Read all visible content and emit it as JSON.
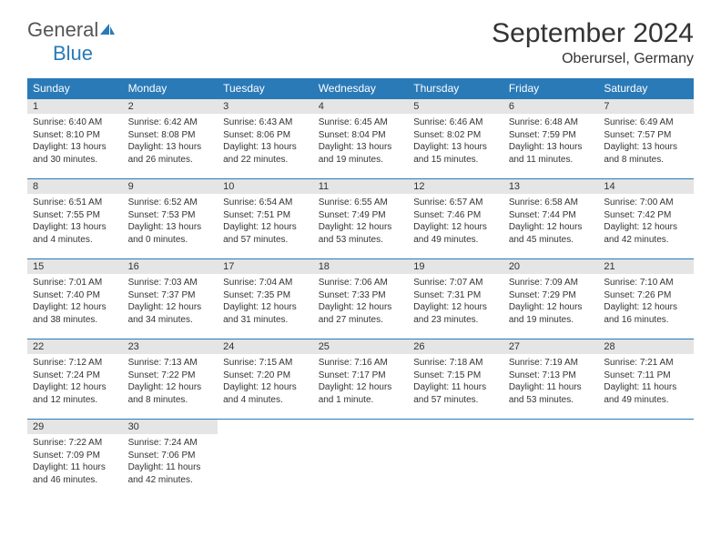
{
  "logo": {
    "text_general": "General",
    "text_blue": "Blue",
    "accent_color": "#2a7ab8",
    "gray_color": "#555555"
  },
  "title": "September 2024",
  "location": "Oberursel, Germany",
  "header_bg": "#2a7ab8",
  "header_fg": "#ffffff",
  "daynum_bg": "#e5e5e5",
  "divider_color": "#2a7ab8",
  "day_names": [
    "Sunday",
    "Monday",
    "Tuesday",
    "Wednesday",
    "Thursday",
    "Friday",
    "Saturday"
  ],
  "weeks": [
    [
      {
        "n": "1",
        "sr": "Sunrise: 6:40 AM",
        "ss": "Sunset: 8:10 PM",
        "dl": "Daylight: 13 hours and 30 minutes."
      },
      {
        "n": "2",
        "sr": "Sunrise: 6:42 AM",
        "ss": "Sunset: 8:08 PM",
        "dl": "Daylight: 13 hours and 26 minutes."
      },
      {
        "n": "3",
        "sr": "Sunrise: 6:43 AM",
        "ss": "Sunset: 8:06 PM",
        "dl": "Daylight: 13 hours and 22 minutes."
      },
      {
        "n": "4",
        "sr": "Sunrise: 6:45 AM",
        "ss": "Sunset: 8:04 PM",
        "dl": "Daylight: 13 hours and 19 minutes."
      },
      {
        "n": "5",
        "sr": "Sunrise: 6:46 AM",
        "ss": "Sunset: 8:02 PM",
        "dl": "Daylight: 13 hours and 15 minutes."
      },
      {
        "n": "6",
        "sr": "Sunrise: 6:48 AM",
        "ss": "Sunset: 7:59 PM",
        "dl": "Daylight: 13 hours and 11 minutes."
      },
      {
        "n": "7",
        "sr": "Sunrise: 6:49 AM",
        "ss": "Sunset: 7:57 PM",
        "dl": "Daylight: 13 hours and 8 minutes."
      }
    ],
    [
      {
        "n": "8",
        "sr": "Sunrise: 6:51 AM",
        "ss": "Sunset: 7:55 PM",
        "dl": "Daylight: 13 hours and 4 minutes."
      },
      {
        "n": "9",
        "sr": "Sunrise: 6:52 AM",
        "ss": "Sunset: 7:53 PM",
        "dl": "Daylight: 13 hours and 0 minutes."
      },
      {
        "n": "10",
        "sr": "Sunrise: 6:54 AM",
        "ss": "Sunset: 7:51 PM",
        "dl": "Daylight: 12 hours and 57 minutes."
      },
      {
        "n": "11",
        "sr": "Sunrise: 6:55 AM",
        "ss": "Sunset: 7:49 PM",
        "dl": "Daylight: 12 hours and 53 minutes."
      },
      {
        "n": "12",
        "sr": "Sunrise: 6:57 AM",
        "ss": "Sunset: 7:46 PM",
        "dl": "Daylight: 12 hours and 49 minutes."
      },
      {
        "n": "13",
        "sr": "Sunrise: 6:58 AM",
        "ss": "Sunset: 7:44 PM",
        "dl": "Daylight: 12 hours and 45 minutes."
      },
      {
        "n": "14",
        "sr": "Sunrise: 7:00 AM",
        "ss": "Sunset: 7:42 PM",
        "dl": "Daylight: 12 hours and 42 minutes."
      }
    ],
    [
      {
        "n": "15",
        "sr": "Sunrise: 7:01 AM",
        "ss": "Sunset: 7:40 PM",
        "dl": "Daylight: 12 hours and 38 minutes."
      },
      {
        "n": "16",
        "sr": "Sunrise: 7:03 AM",
        "ss": "Sunset: 7:37 PM",
        "dl": "Daylight: 12 hours and 34 minutes."
      },
      {
        "n": "17",
        "sr": "Sunrise: 7:04 AM",
        "ss": "Sunset: 7:35 PM",
        "dl": "Daylight: 12 hours and 31 minutes."
      },
      {
        "n": "18",
        "sr": "Sunrise: 7:06 AM",
        "ss": "Sunset: 7:33 PM",
        "dl": "Daylight: 12 hours and 27 minutes."
      },
      {
        "n": "19",
        "sr": "Sunrise: 7:07 AM",
        "ss": "Sunset: 7:31 PM",
        "dl": "Daylight: 12 hours and 23 minutes."
      },
      {
        "n": "20",
        "sr": "Sunrise: 7:09 AM",
        "ss": "Sunset: 7:29 PM",
        "dl": "Daylight: 12 hours and 19 minutes."
      },
      {
        "n": "21",
        "sr": "Sunrise: 7:10 AM",
        "ss": "Sunset: 7:26 PM",
        "dl": "Daylight: 12 hours and 16 minutes."
      }
    ],
    [
      {
        "n": "22",
        "sr": "Sunrise: 7:12 AM",
        "ss": "Sunset: 7:24 PM",
        "dl": "Daylight: 12 hours and 12 minutes."
      },
      {
        "n": "23",
        "sr": "Sunrise: 7:13 AM",
        "ss": "Sunset: 7:22 PM",
        "dl": "Daylight: 12 hours and 8 minutes."
      },
      {
        "n": "24",
        "sr": "Sunrise: 7:15 AM",
        "ss": "Sunset: 7:20 PM",
        "dl": "Daylight: 12 hours and 4 minutes."
      },
      {
        "n": "25",
        "sr": "Sunrise: 7:16 AM",
        "ss": "Sunset: 7:17 PM",
        "dl": "Daylight: 12 hours and 1 minute."
      },
      {
        "n": "26",
        "sr": "Sunrise: 7:18 AM",
        "ss": "Sunset: 7:15 PM",
        "dl": "Daylight: 11 hours and 57 minutes."
      },
      {
        "n": "27",
        "sr": "Sunrise: 7:19 AM",
        "ss": "Sunset: 7:13 PM",
        "dl": "Daylight: 11 hours and 53 minutes."
      },
      {
        "n": "28",
        "sr": "Sunrise: 7:21 AM",
        "ss": "Sunset: 7:11 PM",
        "dl": "Daylight: 11 hours and 49 minutes."
      }
    ],
    [
      {
        "n": "29",
        "sr": "Sunrise: 7:22 AM",
        "ss": "Sunset: 7:09 PM",
        "dl": "Daylight: 11 hours and 46 minutes."
      },
      {
        "n": "30",
        "sr": "Sunrise: 7:24 AM",
        "ss": "Sunset: 7:06 PM",
        "dl": "Daylight: 11 hours and 42 minutes."
      },
      null,
      null,
      null,
      null,
      null
    ]
  ]
}
